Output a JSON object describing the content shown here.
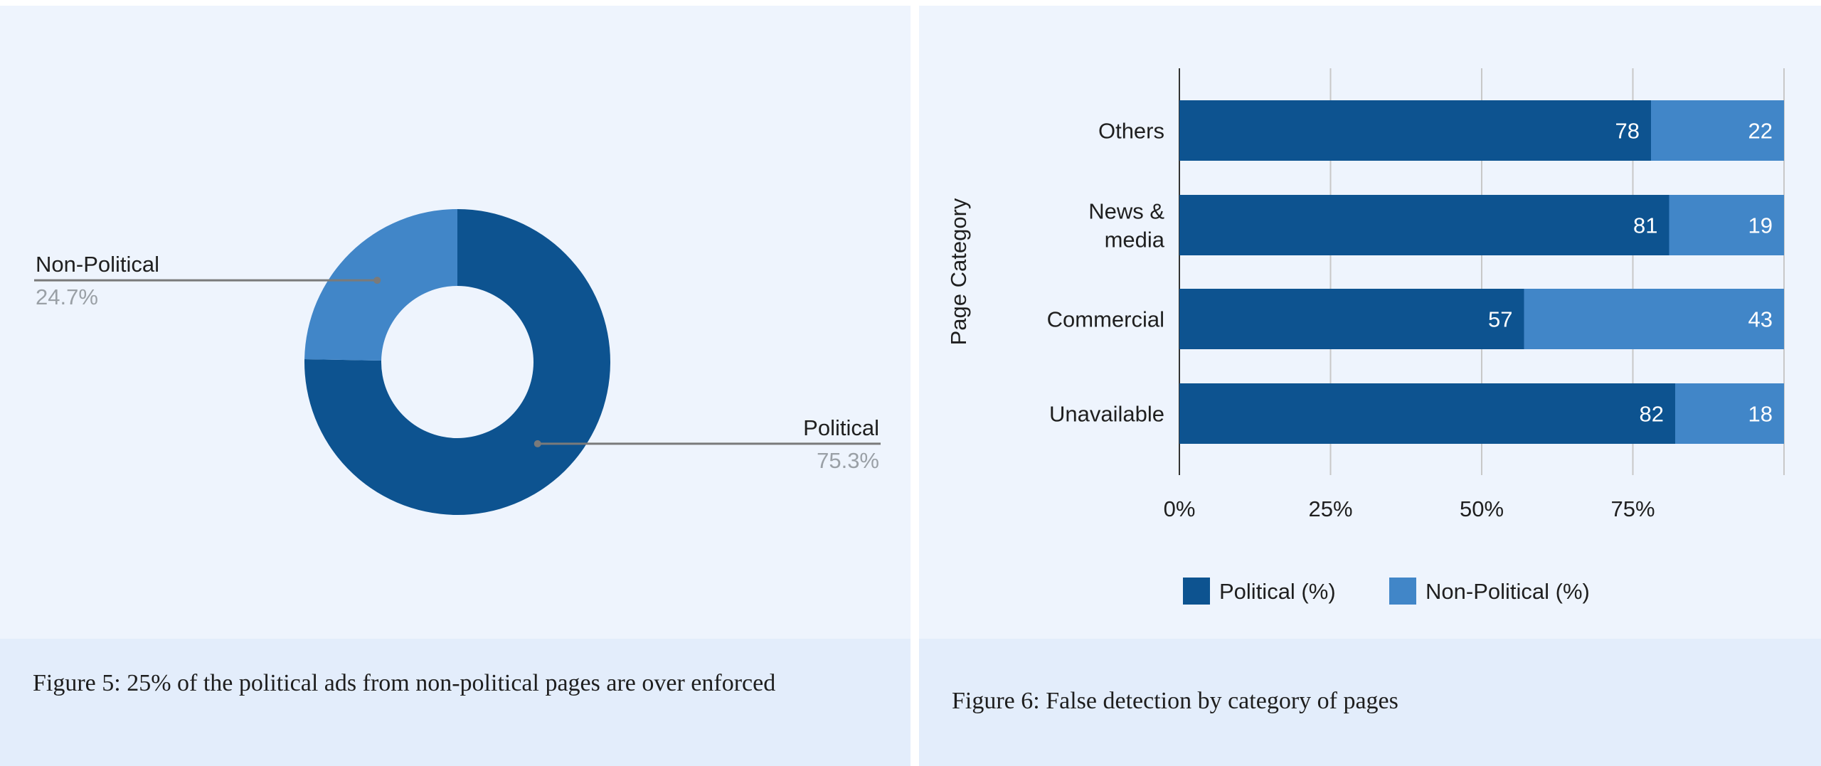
{
  "figures": [
    {
      "caption": "Figure 5: 25% of the political ads from non-political pages are over enforced"
    },
    {
      "caption": "Figure 6:  False detection by category of pages"
    }
  ],
  "colors": {
    "political": "#0d5390",
    "non_political": "#4186c8",
    "panel_background": "#eef4fd",
    "caption_background": "#e3edfb",
    "gridline": "#c8c8c8",
    "leader_line": "#7a7a7a",
    "percent_label": "#9aa0a6"
  },
  "chart_data": [
    {
      "type": "pie",
      "donut": true,
      "slices": [
        {
          "label": "Political",
          "value": 75.3,
          "value_label": "75.3%",
          "color": "#0d5390"
        },
        {
          "label": "Non-Political",
          "value": 24.7,
          "value_label": "24.7%",
          "color": "#4186c8"
        }
      ],
      "legend": "none"
    },
    {
      "type": "bar",
      "orientation": "horizontal",
      "stacked": true,
      "categories": [
        "Others",
        "News & media",
        "Commercial",
        "Unavailable"
      ],
      "category_lines": [
        [
          "Others"
        ],
        [
          "News &",
          "media"
        ],
        [
          "Commercial"
        ],
        [
          "Unavailable"
        ]
      ],
      "series": [
        {
          "name": "Political (%)",
          "values": [
            78,
            81,
            57,
            82
          ],
          "color": "#0d5390"
        },
        {
          "name": "Non-Political (%)",
          "values": [
            22,
            19,
            43,
            18
          ],
          "color": "#4186c8"
        }
      ],
      "xlabel": "",
      "ylabel": "Page Category",
      "xlim": [
        0,
        100
      ],
      "xticks": [
        "0%",
        "25%",
        "50%",
        "75%"
      ],
      "xtick_values": [
        0,
        25,
        50,
        75
      ],
      "grid": true,
      "legend": "bottom"
    }
  ]
}
